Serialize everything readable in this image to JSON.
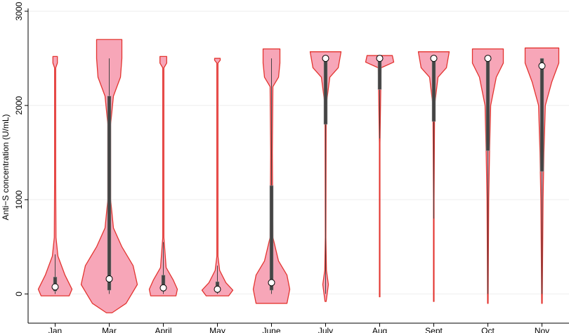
{
  "chart_data": {
    "type": "violin",
    "y_label": "Anti−S concentration (U/mL)",
    "categories": [
      "Jan",
      "Mar",
      "April",
      "May",
      "June",
      "July",
      "Aug",
      "Sept",
      "Oct",
      "Nov"
    ],
    "ylim": [
      -310,
      3000
    ],
    "yticks": [
      0,
      1000,
      2000,
      3000
    ],
    "grid": true,
    "fill_color": "#f7a6b8",
    "edge_color": "#e3342f",
    "box_color": "#444444",
    "violins": [
      {
        "density": [
          [
            -20,
            0.5
          ],
          [
            50,
            0.6
          ],
          [
            200,
            0.35
          ],
          [
            400,
            0.1
          ],
          [
            600,
            0.03
          ],
          [
            1200,
            0.02
          ],
          [
            2400,
            0.02
          ],
          [
            2450,
            0.08
          ],
          [
            2520,
            0.08
          ]
        ],
        "median": 75,
        "q1": 30,
        "q3": 180,
        "whisker": [
          0,
          420
        ]
      },
      {
        "density": [
          [
            -200,
            0.1
          ],
          [
            -100,
            0.6
          ],
          [
            100,
            1.0
          ],
          [
            300,
            0.85
          ],
          [
            500,
            0.45
          ],
          [
            700,
            0.15
          ],
          [
            1000,
            0.05
          ],
          [
            1800,
            0.05
          ],
          [
            2100,
            0.15
          ],
          [
            2300,
            0.4
          ],
          [
            2500,
            0.45
          ],
          [
            2700,
            0.45
          ]
        ],
        "median": 160,
        "q1": 40,
        "q3": 2100,
        "whisker": [
          0,
          2500
        ]
      },
      {
        "density": [
          [
            -20,
            0.45
          ],
          [
            50,
            0.5
          ],
          [
            150,
            0.35
          ],
          [
            280,
            0.1
          ],
          [
            600,
            0.02
          ],
          [
            1500,
            0.02
          ],
          [
            2400,
            0.02
          ],
          [
            2450,
            0.12
          ],
          [
            2520,
            0.12
          ]
        ],
        "median": 65,
        "q1": 30,
        "q3": 200,
        "whisker": [
          0,
          550
        ]
      },
      {
        "density": [
          [
            -20,
            0.4
          ],
          [
            40,
            0.55
          ],
          [
            120,
            0.3
          ],
          [
            250,
            0.08
          ],
          [
            400,
            0.02
          ],
          [
            2450,
            0.02
          ],
          [
            2480,
            0.1
          ],
          [
            2500,
            0.1
          ]
        ],
        "median": 50,
        "q1": 20,
        "q3": 130,
        "whisker": [
          0,
          300
        ]
      },
      {
        "density": [
          [
            -100,
            0.55
          ],
          [
            50,
            0.65
          ],
          [
            200,
            0.55
          ],
          [
            350,
            0.25
          ],
          [
            600,
            0.05
          ],
          [
            1500,
            0.03
          ],
          [
            2200,
            0.05
          ],
          [
            2300,
            0.25
          ],
          [
            2450,
            0.3
          ],
          [
            2600,
            0.3
          ]
        ],
        "median": 120,
        "q1": 40,
        "q3": 1150,
        "whisker": [
          0,
          2500
        ]
      },
      {
        "density": [
          [
            -80,
            0.02
          ],
          [
            100,
            0.1
          ],
          [
            250,
            0.03
          ],
          [
            600,
            0.01
          ],
          [
            2000,
            0.02
          ],
          [
            2300,
            0.15
          ],
          [
            2400,
            0.45
          ],
          [
            2570,
            0.55
          ]
        ],
        "median": 2500,
        "q1": 1800,
        "q3": 2500,
        "whisker": [
          0,
          2500
        ]
      },
      {
        "density": [
          [
            -30,
            0.01
          ],
          [
            1600,
            0.01
          ],
          [
            2400,
            0.05
          ],
          [
            2460,
            0.5
          ],
          [
            2530,
            0.45
          ]
        ],
        "median": 2500,
        "q1": 2170,
        "q3": 2500,
        "whisker": [
          1650,
          2500
        ]
      },
      {
        "density": [
          [
            -80,
            0.01
          ],
          [
            1000,
            0.01
          ],
          [
            2000,
            0.03
          ],
          [
            2300,
            0.15
          ],
          [
            2400,
            0.45
          ],
          [
            2570,
            0.55
          ]
        ],
        "median": 2500,
        "q1": 1830,
        "q3": 2500,
        "whisker": [
          800,
          2500
        ]
      },
      {
        "density": [
          [
            -100,
            0.01
          ],
          [
            1000,
            0.03
          ],
          [
            1500,
            0.06
          ],
          [
            2000,
            0.1
          ],
          [
            2300,
            0.3
          ],
          [
            2450,
            0.55
          ],
          [
            2600,
            0.55
          ]
        ],
        "median": 2500,
        "q1": 1520,
        "q3": 2500,
        "whisker": [
          0,
          2500
        ]
      },
      {
        "density": [
          [
            -100,
            0.01
          ],
          [
            1000,
            0.04
          ],
          [
            1500,
            0.07
          ],
          [
            2000,
            0.12
          ],
          [
            2250,
            0.35
          ],
          [
            2450,
            0.6
          ],
          [
            2610,
            0.6
          ]
        ],
        "median": 2420,
        "q1": 1300,
        "q3": 2500,
        "whisker": [
          0,
          2500
        ]
      }
    ]
  }
}
